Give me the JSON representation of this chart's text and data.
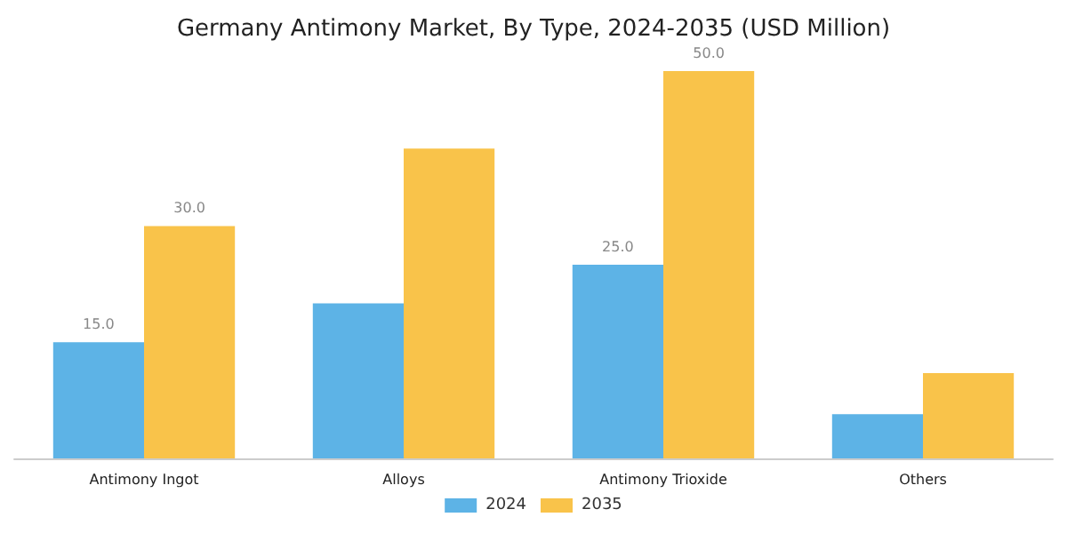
{
  "chart_data": {
    "type": "bar",
    "title": "Germany Antimony Market, By Type, 2024-2035 (USD Million)",
    "categories": [
      "Antimony Ingot",
      "Alloys",
      "Antimony Trioxide",
      "Others"
    ],
    "series": [
      {
        "name": "2024",
        "color": "#5db3e6",
        "values": [
          15,
          20,
          25,
          5.7
        ],
        "value_labels": [
          "15.0",
          null,
          "25.0",
          null
        ]
      },
      {
        "name": "2035",
        "color": "#f9c34a",
        "values": [
          30,
          40,
          50,
          11
        ],
        "value_labels": [
          "30.0",
          null,
          "50.0",
          null
        ]
      }
    ],
    "legend": "bottom"
  }
}
